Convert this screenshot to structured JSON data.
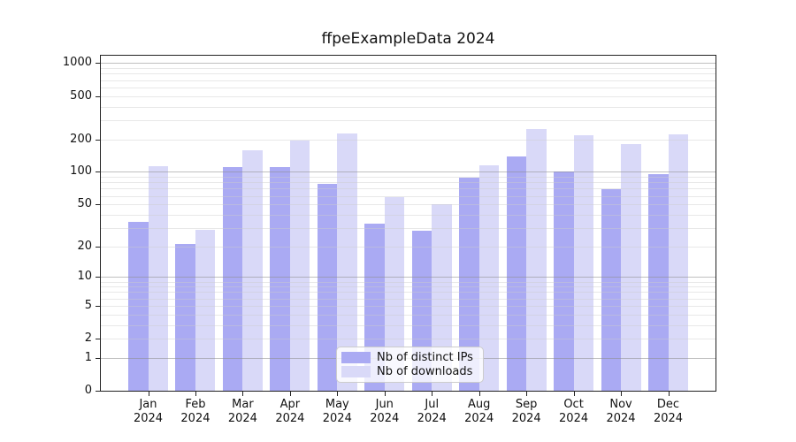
{
  "title": "ffpeExampleData 2024",
  "chart_data": {
    "type": "bar",
    "title": "ffpeExampleData 2024",
    "categories": [
      "Jan",
      "Feb",
      "Mar",
      "Apr",
      "May",
      "Jun",
      "Jul",
      "Aug",
      "Sep",
      "Oct",
      "Nov",
      "Dec"
    ],
    "year": "2024",
    "series": [
      {
        "name": "Nb of distinct IPs",
        "color": "#aaaaf3",
        "values": [
          34,
          21,
          111,
          110,
          78,
          33,
          28,
          88,
          140,
          100,
          69,
          95
        ]
      },
      {
        "name": "Nb of downloads",
        "color": "#d9d9f8",
        "values": [
          112,
          29,
          157,
          195,
          227,
          58,
          50,
          115,
          249,
          219,
          179,
          224
        ]
      }
    ],
    "y_ticks": [
      0,
      1,
      2,
      5,
      10,
      20,
      50,
      100,
      200,
      500,
      1000
    ],
    "y_scale": "log10(value+1)",
    "ylim": [
      0,
      1000
    ],
    "grid": "horizontal minor log gridlines, majors at powers of 10",
    "legend_position": "bottom-center",
    "colors": {
      "bar_dark": "#aaaaf3",
      "bar_light": "#d9d9f8",
      "grid_minor": "#ececec",
      "grid_major": "#c6c6c6",
      "axis": "#222222"
    }
  }
}
